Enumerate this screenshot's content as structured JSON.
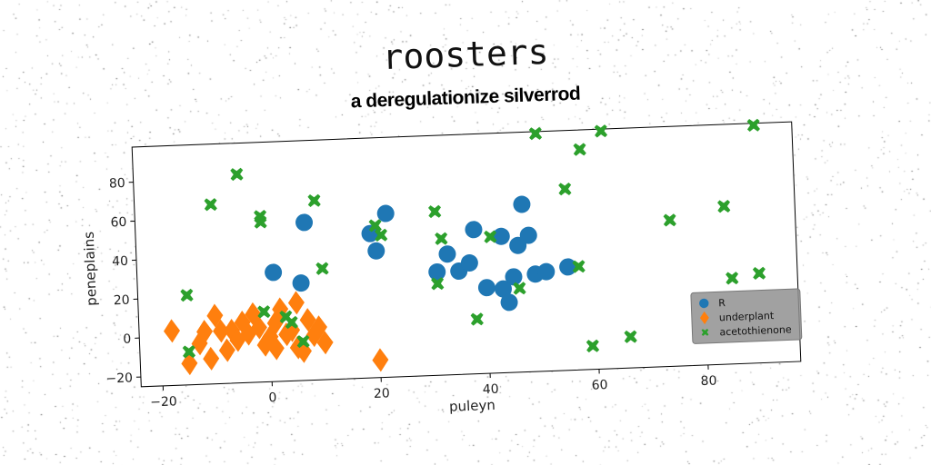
{
  "chart_data": {
    "type": "scatter",
    "title": "roosters",
    "subtitle": "a deregulationize silverrod",
    "xlabel": "puleyn",
    "ylabel": "peneplains",
    "xlim": [
      -24,
      97
    ],
    "ylim": [
      -25,
      98
    ],
    "xticks": [
      -20,
      0,
      20,
      40,
      60,
      80
    ],
    "yticks": [
      -20,
      0,
      20,
      40,
      60,
      80
    ],
    "grid": false,
    "legend_position": "bottom-right",
    "series": [
      {
        "name": "R",
        "marker": "circle",
        "color": "#1f77b4",
        "points": [
          [
            1,
            31
          ],
          [
            6,
            25
          ],
          [
            7,
            56
          ],
          [
            19,
            49
          ],
          [
            20,
            40
          ],
          [
            22,
            59
          ],
          [
            31,
            28
          ],
          [
            33,
            37
          ],
          [
            35,
            28
          ],
          [
            37,
            32
          ],
          [
            38,
            49
          ],
          [
            40,
            19
          ],
          [
            43,
            18
          ],
          [
            43,
            45
          ],
          [
            44,
            11
          ],
          [
            45,
            24
          ],
          [
            46,
            40
          ],
          [
            47,
            61
          ],
          [
            48,
            45
          ],
          [
            49,
            25
          ],
          [
            51,
            26
          ],
          [
            55,
            28
          ]
        ]
      },
      {
        "name": "underplant",
        "marker": "diamond",
        "color": "#ff7f0e",
        "points": [
          [
            -18,
            3
          ],
          [
            -15,
            -14
          ],
          [
            -13,
            -4
          ],
          [
            -12,
            2
          ],
          [
            -11,
            -12
          ],
          [
            -10,
            10
          ],
          [
            -9,
            2
          ],
          [
            -8,
            -8
          ],
          [
            -7,
            2
          ],
          [
            -6,
            -3
          ],
          [
            -5,
            6
          ],
          [
            -4,
            0
          ],
          [
            -3,
            10
          ],
          [
            -2,
            3
          ],
          [
            -1,
            -6
          ],
          [
            0,
            -2
          ],
          [
            1,
            5
          ],
          [
            1,
            -8
          ],
          [
            2,
            12
          ],
          [
            3,
            -1
          ],
          [
            4,
            1
          ],
          [
            5,
            -8
          ],
          [
            5,
            15
          ],
          [
            6,
            -10
          ],
          [
            7,
            6
          ],
          [
            8,
            -2
          ],
          [
            9,
            2
          ],
          [
            10,
            -6
          ],
          [
            20,
            -16
          ]
        ]
      },
      {
        "name": "acetothienone",
        "marker": "x",
        "color": "#2ca02c",
        "points": [
          [
            -15,
            21
          ],
          [
            -15,
            -8
          ],
          [
            -10,
            67
          ],
          [
            -5,
            82
          ],
          [
            -1,
            60
          ],
          [
            -1,
            57
          ],
          [
            -1,
            11
          ],
          [
            3,
            8
          ],
          [
            4,
            5
          ],
          [
            6,
            -5
          ],
          [
            9,
            67
          ],
          [
            10,
            32
          ],
          [
            20,
            53
          ],
          [
            21,
            48
          ],
          [
            31,
            59
          ],
          [
            31,
            22
          ],
          [
            32,
            45
          ],
          [
            38,
            3
          ],
          [
            41,
            45
          ],
          [
            46,
            18
          ],
          [
            50,
            97
          ],
          [
            55,
            68
          ],
          [
            57,
            28
          ],
          [
            58,
            88
          ],
          [
            59,
            -13
          ],
          [
            62,
            97
          ],
          [
            66,
            -9
          ],
          [
            74,
            50
          ],
          [
            84,
            56
          ],
          [
            85,
            19
          ],
          [
            90,
            97
          ],
          [
            90,
            21
          ]
        ]
      }
    ]
  }
}
